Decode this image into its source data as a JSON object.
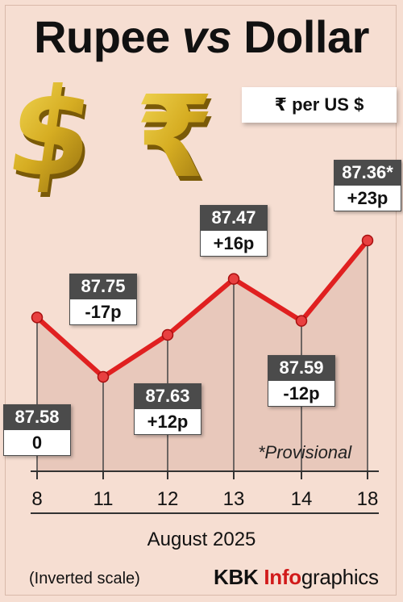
{
  "header": {
    "title_part1": "Rupee",
    "title_part2": "vs",
    "title_part3": "Dollar",
    "unit": "₹ per US $"
  },
  "chart_data": {
    "type": "line",
    "title": "Rupee vs Dollar",
    "xlabel": "August 2025",
    "ylabel": "₹ per US $",
    "y_inverted": true,
    "categories": [
      "8",
      "11",
      "12",
      "13",
      "14",
      "18"
    ],
    "values": [
      87.58,
      87.75,
      87.63,
      87.47,
      87.59,
      87.36
    ],
    "value_labels": [
      "87.58",
      "87.75",
      "87.63",
      "87.47",
      "87.59",
      "87.36*"
    ],
    "change_labels": [
      "0",
      "-17p",
      "+12p",
      "+16p",
      "-12p",
      "+23p"
    ],
    "note": "*Provisional",
    "line_color": "#e02020",
    "area_color": "#e8c8bb"
  },
  "footer": {
    "scale_note": "(Inverted scale)",
    "brand_kbk": "KBK",
    "brand_info": "Info",
    "brand_graphics": "graphics"
  },
  "colors": {
    "background": "#f6ded2",
    "accent": "#d11a1a",
    "coin_gold": "#d9b32a"
  },
  "icons": [
    "dollar-sign-icon",
    "rupee-sign-icon"
  ]
}
